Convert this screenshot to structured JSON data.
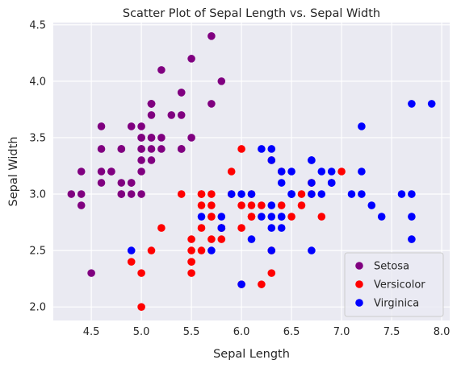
{
  "chart_data": {
    "type": "scatter",
    "title": "Scatter Plot of Sepal Length vs. Sepal Width",
    "xlabel": "Sepal Length",
    "ylabel": "Sepal Width",
    "xlim": [
      4.12,
      8.08
    ],
    "ylim": [
      1.88,
      4.52
    ],
    "xticks": [
      "4.5",
      "5.0",
      "5.5",
      "6.0",
      "6.5",
      "7.0",
      "7.5",
      "8.0"
    ],
    "yticks": [
      "2.0",
      "2.5",
      "3.0",
      "3.5",
      "4.0",
      "4.5"
    ],
    "xtick_values": [
      4.5,
      5.0,
      5.5,
      6.0,
      6.5,
      7.0,
      7.5,
      8.0
    ],
    "ytick_values": [
      2.0,
      2.5,
      3.0,
      3.5,
      4.0,
      4.5
    ],
    "grid": true,
    "legend_position": "lower-right",
    "background_color": "#eaeaf2",
    "series": [
      {
        "name": "Setosa",
        "color": "#800080",
        "points": [
          [
            5.1,
            3.5
          ],
          [
            4.9,
            3.0
          ],
          [
            4.7,
            3.2
          ],
          [
            4.6,
            3.1
          ],
          [
            5.0,
            3.6
          ],
          [
            5.4,
            3.9
          ],
          [
            4.6,
            3.4
          ],
          [
            5.0,
            3.4
          ],
          [
            4.4,
            2.9
          ],
          [
            4.9,
            3.1
          ],
          [
            5.4,
            3.7
          ],
          [
            4.8,
            3.4
          ],
          [
            4.8,
            3.0
          ],
          [
            4.3,
            3.0
          ],
          [
            5.8,
            4.0
          ],
          [
            5.7,
            4.4
          ],
          [
            5.4,
            3.9
          ],
          [
            5.1,
            3.5
          ],
          [
            5.7,
            3.8
          ],
          [
            5.1,
            3.8
          ],
          [
            5.4,
            3.4
          ],
          [
            5.1,
            3.7
          ],
          [
            4.6,
            3.6
          ],
          [
            5.1,
            3.3
          ],
          [
            4.8,
            3.4
          ],
          [
            5.0,
            3.0
          ],
          [
            5.0,
            3.4
          ],
          [
            5.2,
            3.5
          ],
          [
            5.2,
            3.4
          ],
          [
            4.7,
            3.2
          ],
          [
            4.8,
            3.1
          ],
          [
            5.4,
            3.4
          ],
          [
            5.2,
            4.1
          ],
          [
            5.5,
            4.2
          ],
          [
            4.9,
            3.1
          ],
          [
            5.0,
            3.2
          ],
          [
            5.5,
            3.5
          ],
          [
            4.9,
            3.6
          ],
          [
            4.4,
            3.0
          ],
          [
            5.1,
            3.4
          ],
          [
            5.0,
            3.5
          ],
          [
            4.5,
            2.3
          ],
          [
            4.4,
            3.2
          ],
          [
            5.0,
            3.5
          ],
          [
            5.1,
            3.8
          ],
          [
            4.8,
            3.0
          ],
          [
            5.1,
            3.8
          ],
          [
            4.6,
            3.2
          ],
          [
            5.3,
            3.7
          ],
          [
            5.0,
            3.3
          ]
        ]
      },
      {
        "name": "Versicolor",
        "color": "#ff0000",
        "points": [
          [
            7.0,
            3.2
          ],
          [
            6.4,
            3.2
          ],
          [
            6.9,
            3.1
          ],
          [
            5.5,
            2.3
          ],
          [
            6.5,
            2.8
          ],
          [
            5.7,
            2.8
          ],
          [
            6.3,
            3.3
          ],
          [
            4.9,
            2.4
          ],
          [
            6.6,
            2.9
          ],
          [
            5.2,
            2.7
          ],
          [
            5.0,
            2.0
          ],
          [
            5.9,
            3.0
          ],
          [
            6.0,
            2.2
          ],
          [
            6.1,
            2.9
          ],
          [
            5.6,
            2.9
          ],
          [
            6.7,
            3.1
          ],
          [
            5.6,
            3.0
          ],
          [
            5.8,
            2.7
          ],
          [
            6.2,
            2.2
          ],
          [
            5.6,
            2.5
          ],
          [
            5.9,
            3.2
          ],
          [
            6.1,
            2.8
          ],
          [
            6.3,
            2.5
          ],
          [
            6.1,
            2.8
          ],
          [
            6.4,
            2.9
          ],
          [
            6.6,
            3.0
          ],
          [
            6.8,
            2.8
          ],
          [
            6.7,
            3.0
          ],
          [
            6.0,
            2.9
          ],
          [
            5.7,
            2.6
          ],
          [
            5.5,
            2.4
          ],
          [
            5.5,
            2.4
          ],
          [
            5.8,
            2.7
          ],
          [
            6.0,
            2.7
          ],
          [
            5.4,
            3.0
          ],
          [
            6.0,
            3.4
          ],
          [
            6.7,
            3.1
          ],
          [
            6.3,
            2.3
          ],
          [
            5.6,
            3.0
          ],
          [
            5.5,
            2.5
          ],
          [
            5.5,
            2.6
          ],
          [
            6.1,
            3.0
          ],
          [
            5.8,
            2.6
          ],
          [
            5.0,
            2.3
          ],
          [
            5.6,
            2.7
          ],
          [
            5.7,
            3.0
          ],
          [
            5.7,
            2.9
          ],
          [
            6.2,
            2.9
          ],
          [
            5.1,
            2.5
          ],
          [
            5.7,
            2.8
          ]
        ]
      },
      {
        "name": "Virginica",
        "color": "#0000ff",
        "points": [
          [
            6.3,
            3.3
          ],
          [
            5.8,
            2.7
          ],
          [
            7.1,
            3.0
          ],
          [
            6.3,
            2.9
          ],
          [
            6.5,
            3.0
          ],
          [
            7.6,
            3.0
          ],
          [
            4.9,
            2.5
          ],
          [
            7.3,
            2.9
          ],
          [
            6.7,
            2.5
          ],
          [
            7.2,
            3.6
          ],
          [
            6.5,
            3.2
          ],
          [
            6.4,
            2.7
          ],
          [
            6.8,
            3.0
          ],
          [
            5.7,
            2.5
          ],
          [
            5.8,
            2.8
          ],
          [
            6.4,
            3.2
          ],
          [
            6.5,
            3.0
          ],
          [
            7.7,
            3.8
          ],
          [
            7.7,
            2.6
          ],
          [
            6.0,
            2.2
          ],
          [
            6.9,
            3.2
          ],
          [
            5.6,
            2.8
          ],
          [
            7.7,
            2.8
          ],
          [
            6.3,
            2.7
          ],
          [
            6.7,
            3.3
          ],
          [
            7.2,
            3.2
          ],
          [
            6.2,
            2.8
          ],
          [
            6.1,
            3.0
          ],
          [
            6.4,
            2.8
          ],
          [
            7.2,
            3.0
          ],
          [
            7.4,
            2.8
          ],
          [
            7.9,
            3.8
          ],
          [
            6.4,
            2.8
          ],
          [
            6.3,
            2.8
          ],
          [
            6.1,
            2.6
          ],
          [
            7.7,
            3.0
          ],
          [
            6.3,
            3.4
          ],
          [
            6.4,
            3.1
          ],
          [
            6.0,
            3.0
          ],
          [
            6.9,
            3.1
          ],
          [
            6.7,
            3.1
          ],
          [
            6.9,
            3.1
          ],
          [
            5.8,
            2.7
          ],
          [
            6.8,
            3.2
          ],
          [
            6.7,
            3.3
          ],
          [
            6.7,
            3.0
          ],
          [
            6.3,
            2.5
          ],
          [
            6.5,
            3.0
          ],
          [
            6.2,
            3.4
          ],
          [
            5.9,
            3.0
          ]
        ]
      }
    ]
  }
}
